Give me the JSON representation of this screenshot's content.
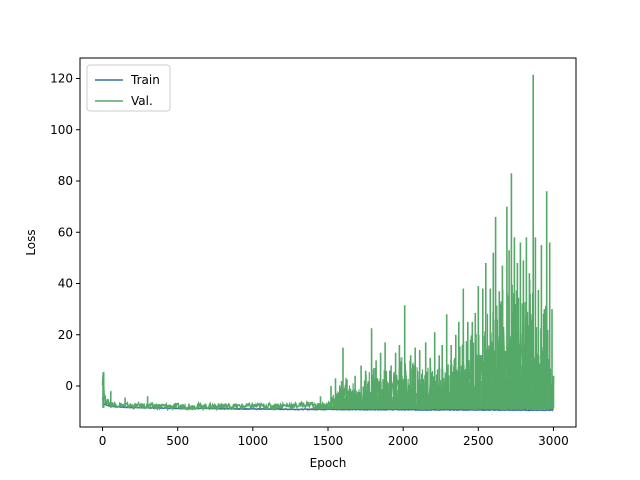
{
  "chart_data": {
    "type": "line",
    "title": "",
    "xlabel": "Epoch",
    "ylabel": "Loss",
    "xlim": [
      -150,
      3150
    ],
    "ylim": [
      -16,
      128
    ],
    "xticks": [
      0,
      500,
      1000,
      1500,
      2000,
      2500,
      3000
    ],
    "yticks": [
      0,
      20,
      40,
      60,
      80,
      100,
      120
    ],
    "grid": false,
    "legend_position": "top-left",
    "series": [
      {
        "name": "Train",
        "color": "#3a6ea5",
        "x": [
          0,
          5,
          10,
          20,
          40,
          60,
          100,
          150,
          200,
          300,
          400,
          500,
          700,
          900,
          1100,
          1300,
          1500,
          1700,
          1900,
          2100,
          2300,
          2500,
          2700,
          2900,
          3000
        ],
        "values": [
          -4.5,
          -6.0,
          -6.8,
          -7.3,
          -7.7,
          -7.9,
          -8.1,
          -8.3,
          -8.4,
          -8.5,
          -8.6,
          -8.7,
          -8.8,
          -8.9,
          -9.0,
          -9.1,
          -9.1,
          -9.2,
          -9.2,
          -9.3,
          -9.3,
          -9.3,
          -9.4,
          -9.4,
          -9.4
        ]
      },
      {
        "name": "Val.",
        "color": "#55a868",
        "x": [
          0,
          5,
          10,
          20,
          40,
          60,
          100,
          150,
          200,
          300,
          400,
          500,
          700,
          900,
          1100,
          1300,
          1500,
          1600,
          1700,
          1800,
          1900,
          2000,
          2100,
          2200,
          2300,
          2400,
          2500,
          2600,
          2700,
          2800,
          2850,
          2900,
          2950,
          3000
        ],
        "values": [
          1.5,
          5.5,
          -3.0,
          -5.5,
          -6.5,
          -7.0,
          -7.2,
          -7.5,
          -7.6,
          -7.7,
          -7.8,
          -7.9,
          -7.8,
          -7.8,
          -7.7,
          -7.5,
          -6.0,
          15.0,
          7.5,
          22.5,
          18.0,
          32.0,
          20.0,
          20.5,
          23.0,
          39.5,
          48.0,
          66.0,
          83.0,
          71.0,
          121.5,
          37.5,
          76.0,
          4.0
        ]
      }
    ],
    "spikes": {
      "Val.": {
        "x": [
          3,
          8,
          55,
          150,
          300,
          1450,
          1520,
          1550,
          1600,
          1650,
          1680,
          1720,
          1750,
          1790,
          1820,
          1850,
          1880,
          1920,
          1950,
          1975,
          2010,
          2050,
          2080,
          2110,
          2150,
          2180,
          2210,
          2240,
          2260,
          2290,
          2320,
          2350,
          2370,
          2400,
          2430,
          2460,
          2480,
          2500,
          2530,
          2550,
          2580,
          2600,
          2615,
          2640,
          2660,
          2690,
          2705,
          2720,
          2740,
          2760,
          2780,
          2800,
          2820,
          2840,
          2865,
          2880,
          2900,
          2920,
          2940,
          2955,
          2975,
          2990,
          3000
        ],
        "values": [
          2.0,
          5.5,
          -2.0,
          -4.5,
          -4.0,
          -4.0,
          0.0,
          3.0,
          15.0,
          -1.0,
          4.0,
          8.0,
          6.0,
          22.5,
          10.0,
          13.0,
          17.0,
          8.0,
          13.0,
          16.0,
          31.5,
          12.0,
          15.0,
          14.0,
          17.0,
          11.0,
          21.0,
          12.0,
          16.0,
          28.0,
          16.0,
          20.0,
          25.0,
          38.0,
          25.0,
          25.0,
          28.5,
          39.0,
          38.0,
          48.0,
          38.0,
          52.0,
          66.0,
          37.0,
          47.0,
          70.0,
          53.0,
          83.0,
          58.0,
          48.0,
          56.0,
          49.0,
          58.0,
          44.0,
          121.5,
          58.0,
          37.5,
          55.0,
          30.0,
          76.0,
          56.0,
          30.0,
          4.0
        ]
      }
    }
  }
}
